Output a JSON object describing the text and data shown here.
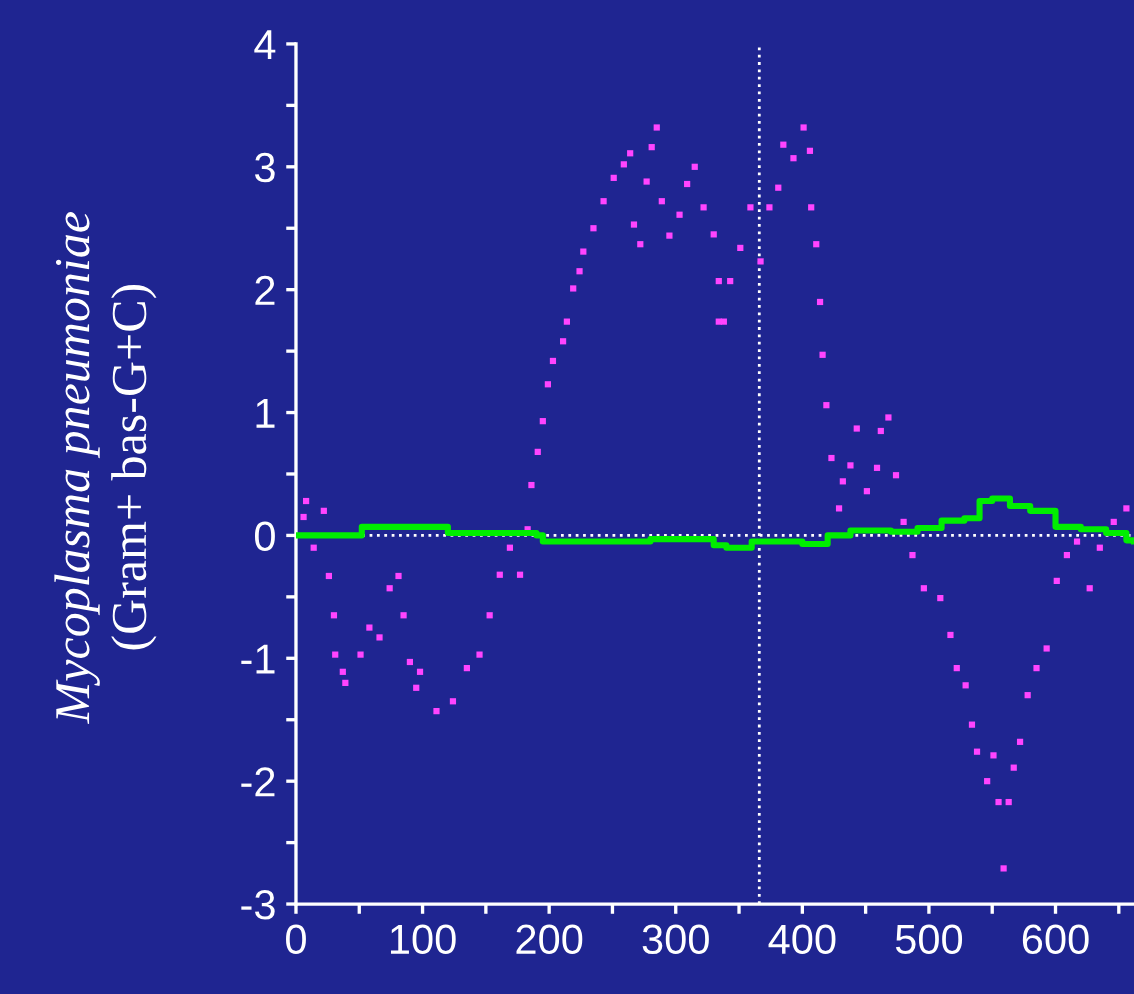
{
  "chart_data": {
    "type": "scatter",
    "ylabel": "Mycoplasma pneumoniae\n(Gram+ bas-G+C)",
    "xlim": [
      0,
      662
    ],
    "ylim": [
      -3,
      4
    ],
    "xticks": [
      0,
      {
        "value": 50,
        "label": null
      },
      100,
      {
        "value": 150,
        "label": null
      },
      200,
      {
        "value": 250,
        "label": null
      },
      300,
      {
        "value": 350,
        "label": null
      },
      400,
      {
        "value": 450,
        "label": null
      },
      500,
      {
        "value": 550,
        "label": null
      },
      600,
      {
        "value": 650,
        "label": null
      }
    ],
    "yticks": [
      -3,
      {
        "value": -2.5,
        "label": null
      },
      -2,
      {
        "value": -1.5,
        "label": null
      },
      -1,
      {
        "value": -0.5,
        "label": null
      },
      0,
      {
        "value": 0.5,
        "label": null
      },
      1,
      {
        "value": 1.5,
        "label": null
      },
      2,
      {
        "value": 2.5,
        "label": null
      },
      3,
      {
        "value": 3.5,
        "label": null
      },
      4
    ],
    "grid": false,
    "ref_lines": [
      {
        "axis": "y",
        "value": 0,
        "label": null,
        "color": "#ffffff",
        "line_style": "dotted"
      },
      {
        "axis": "x",
        "value": 366,
        "label": null,
        "color": "#ffffff",
        "line_style": "dotted"
      }
    ],
    "series": [
      {
        "color": "#ff44ff",
        "marker": "square",
        "x": [
          6,
          8,
          14,
          22,
          26,
          30,
          31,
          37,
          39,
          51,
          58,
          66,
          74,
          81,
          85,
          90,
          95,
          98,
          111,
          124,
          135,
          145,
          153,
          161,
          169,
          177,
          183,
          186,
          191,
          195,
          199,
          203,
          211,
          214,
          219,
          224,
          227,
          235,
          243,
          251,
          259,
          264,
          267,
          272,
          277,
          281,
          285,
          289,
          295,
          303,
          309,
          315,
          322,
          330,
          334,
          334,
          338,
          343,
          351,
          359,
          367,
          374,
          381,
          385,
          393,
          401,
          406,
          407,
          411,
          414,
          416,
          419,
          423,
          429,
          432,
          438,
          443,
          451,
          459,
          462,
          468,
          474,
          480,
          487,
          496,
          509,
          517,
          522,
          529,
          534,
          538,
          546,
          551,
          555,
          559,
          563,
          567,
          572,
          578,
          585,
          593,
          601,
          609,
          617,
          627,
          635,
          646,
          656
        ],
        "values": [
          0.15,
          0.28,
          -0.1,
          0.2,
          -0.33,
          -0.65,
          -0.97,
          -1.11,
          -1.2,
          -0.97,
          -0.75,
          -0.83,
          -0.43,
          -0.33,
          -0.65,
          -1.03,
          -1.24,
          -1.11,
          -1.43,
          -1.35,
          -1.08,
          -0.97,
          -0.65,
          -0.32,
          -0.1,
          -0.32,
          0.05,
          0.41,
          0.68,
          0.93,
          1.23,
          1.42,
          1.58,
          1.74,
          2.01,
          2.15,
          2.31,
          2.5,
          2.72,
          2.91,
          3.02,
          3.11,
          2.53,
          2.37,
          2.88,
          3.16,
          3.32,
          2.72,
          2.44,
          2.61,
          2.86,
          3.0,
          2.67,
          2.45,
          2.07,
          1.74,
          1.74,
          2.07,
          2.34,
          2.67,
          2.23,
          2.67,
          2.83,
          3.18,
          3.07,
          3.32,
          3.13,
          2.67,
          2.37,
          1.9,
          1.47,
          1.06,
          0.63,
          0.22,
          0.44,
          0.57,
          0.87,
          0.36,
          0.55,
          0.85,
          0.96,
          0.49,
          0.11,
          -0.16,
          -0.43,
          -0.51,
          -0.81,
          -1.08,
          -1.22,
          -1.54,
          -1.76,
          -2.0,
          -1.79,
          -2.17,
          -2.71,
          -2.17,
          -1.89,
          -1.68,
          -1.3,
          -1.08,
          -0.92,
          -0.37,
          -0.16,
          -0.05,
          -0.43,
          -0.1,
          0.11,
          0.22
        ]
      },
      {
        "type": "step",
        "color": "#00ee00",
        "x": [
          0,
          50,
          52,
          118,
          120,
          190,
          195,
          260,
          280,
          330,
          340,
          360,
          380,
          400,
          420,
          438,
          470,
          491,
          510,
          528,
          540,
          550,
          564,
          580,
          600,
          620,
          640,
          656,
          662
        ],
        "values": [
          0,
          0,
          0.07,
          0.07,
          0.02,
          0,
          -0.05,
          -0.05,
          -0.03,
          -0.08,
          -0.1,
          -0.05,
          -0.05,
          -0.07,
          0,
          0.04,
          0.03,
          0.06,
          0.12,
          0.14,
          0.28,
          0.3,
          0.24,
          0.2,
          0.07,
          0.05,
          0.02,
          -0.04,
          -0.05
        ]
      }
    ]
  }
}
